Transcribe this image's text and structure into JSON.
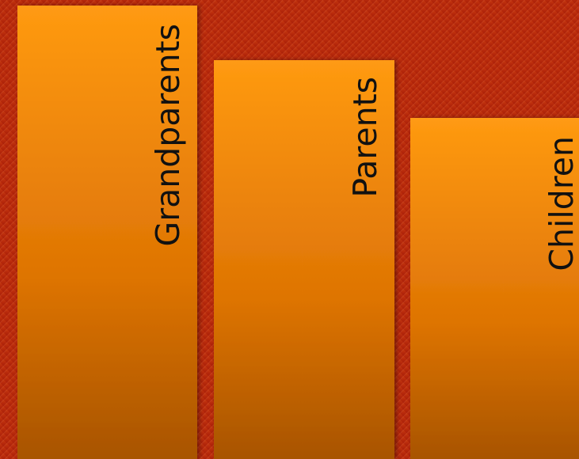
{
  "items": [
    {
      "label": "Grandparents"
    },
    {
      "label": "Parents"
    },
    {
      "label": "Children"
    }
  ]
}
